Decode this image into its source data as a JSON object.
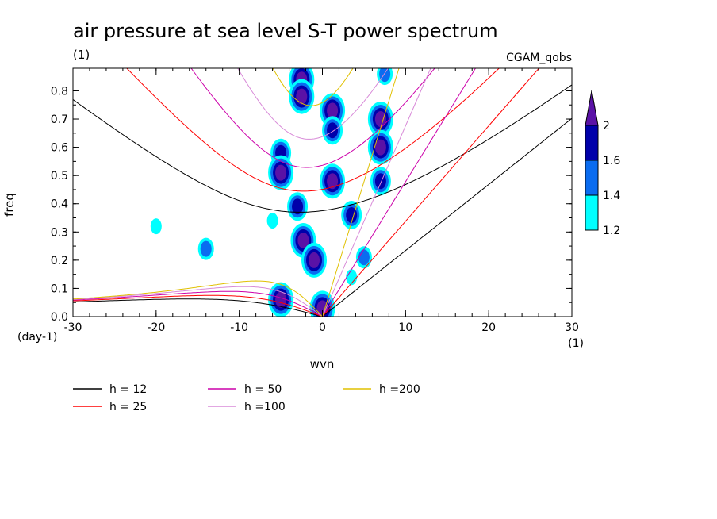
{
  "chart_data": {
    "type": "heatmap",
    "title": "air pressure at sea level S-T power spectrum",
    "subtitle_units": "(1)",
    "source_label": "CGAM_qobs",
    "xlabel": "wvn",
    "ylabel": "freq",
    "x_units": "(1)",
    "y_units": "(day-1)",
    "xlim": [
      -30,
      30
    ],
    "ylim": [
      0,
      0.88
    ],
    "x_ticks": [
      -30,
      -20,
      -10,
      0,
      10,
      20,
      30
    ],
    "x_tick_labels": [
      "-30",
      "-20",
      "-10",
      "0",
      "10",
      "20",
      "30"
    ],
    "y_ticks": [
      0,
      0.1,
      0.2,
      0.3,
      0.4,
      0.5,
      0.6,
      0.7,
      0.8
    ],
    "y_tick_labels": [
      "0.0",
      "0.1",
      "0.2",
      "0.3",
      "0.4",
      "0.5",
      "0.6",
      "0.7",
      "0.8"
    ],
    "colorbar": {
      "levels": [
        1.2,
        1.4,
        1.6,
        2
      ],
      "level_labels": [
        "1.2",
        "1.4",
        "1.6",
        "2"
      ],
      "colors": [
        "#00ffff",
        "#0a6cf0",
        "#0000aa",
        "#5a12a6"
      ]
    },
    "dispersion_curves": [
      {
        "name": "h = 12",
        "h": 12,
        "color": "#000000"
      },
      {
        "name": "h = 25",
        "h": 25,
        "color": "#ff0000"
      },
      {
        "name": "h = 50",
        "h": 50,
        "color": "#cc00aa"
      },
      {
        "name": "h =100",
        "h": 100,
        "color": "#d88ad8"
      },
      {
        "name": "h =200",
        "h": 200,
        "color": "#e0c000"
      }
    ],
    "power_patches": [
      {
        "x": -2.5,
        "y": 0.84,
        "level": 4
      },
      {
        "x": -2.5,
        "y": 0.78,
        "level": 4
      },
      {
        "x": 1.2,
        "y": 0.73,
        "level": 4
      },
      {
        "x": 1.2,
        "y": 0.66,
        "level": 3
      },
      {
        "x": -5,
        "y": 0.58,
        "level": 3
      },
      {
        "x": -5,
        "y": 0.51,
        "level": 4
      },
      {
        "x": 1.2,
        "y": 0.48,
        "level": 4
      },
      {
        "x": -3,
        "y": 0.39,
        "level": 3
      },
      {
        "x": -2.3,
        "y": 0.27,
        "level": 4
      },
      {
        "x": -1,
        "y": 0.2,
        "level": 4
      },
      {
        "x": 7,
        "y": 0.7,
        "level": 4
      },
      {
        "x": 7,
        "y": 0.6,
        "level": 4
      },
      {
        "x": 7,
        "y": 0.48,
        "level": 3
      },
      {
        "x": 3.5,
        "y": 0.36,
        "level": 3
      },
      {
        "x": -5,
        "y": 0.06,
        "level": 4
      },
      {
        "x": 0,
        "y": 0.03,
        "level": 4
      },
      {
        "x": 7.5,
        "y": 0.86,
        "level": 2
      },
      {
        "x": -20,
        "y": 0.32,
        "level": 1
      },
      {
        "x": -14,
        "y": 0.24,
        "level": 2
      },
      {
        "x": -6,
        "y": 0.34,
        "level": 1
      },
      {
        "x": 5,
        "y": 0.21,
        "level": 2
      },
      {
        "x": 3.5,
        "y": 0.14,
        "level": 1
      }
    ]
  },
  "legend": [
    {
      "label": "h = 12",
      "color": "#000000"
    },
    {
      "label": "h = 25",
      "color": "#ff0000"
    },
    {
      "label": "h = 50",
      "color": "#cc00aa"
    },
    {
      "label": "h =100",
      "color": "#d88ad8"
    },
    {
      "label": "h =200",
      "color": "#e0c000"
    }
  ]
}
